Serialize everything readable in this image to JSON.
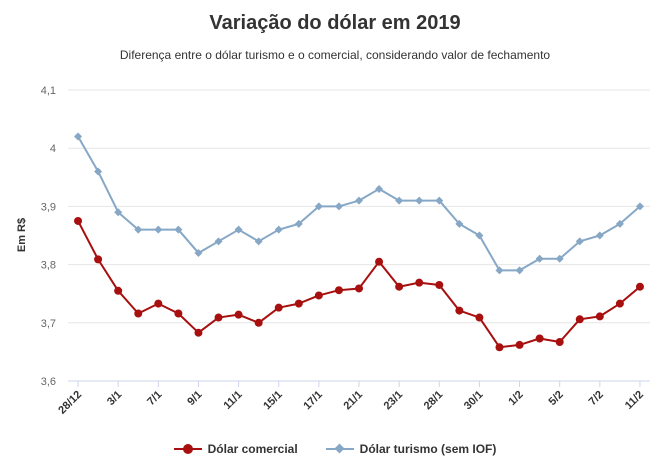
{
  "chart_data": {
    "type": "line",
    "title": "Variação do dólar em 2019",
    "subtitle": "Diferença entre o dólar turismo e o comercial, considerando valor de fechamento",
    "xlabel": "",
    "ylabel": "Em R$",
    "ylim": [
      3.6,
      4.1
    ],
    "yticks": [
      3.6,
      3.7,
      3.8,
      3.9,
      4.0,
      4.1
    ],
    "ytick_labels": [
      "3,6",
      "3,7",
      "3,8",
      "3,9",
      "4",
      "4,1"
    ],
    "grid": true,
    "legend": "bottom",
    "x_tick_labels": [
      "28/12",
      "3/1",
      "7/1",
      "9/1",
      "11/1",
      "15/1",
      "17/1",
      "21/1",
      "23/1",
      "28/1",
      "30/1",
      "1/2",
      "5/2",
      "7/2",
      "11/2"
    ],
    "x_count": 29,
    "series": [
      {
        "name": "Dólar comercial",
        "color": "#a80f0f",
        "marker": "circle",
        "values": [
          3.875,
          3.809,
          3.755,
          3.716,
          3.733,
          3.716,
          3.683,
          3.709,
          3.714,
          3.7,
          3.726,
          3.733,
          3.747,
          3.756,
          3.759,
          3.805,
          3.762,
          3.769,
          3.765,
          3.721,
          3.709,
          3.658,
          3.662,
          3.673,
          3.667,
          3.706,
          3.711,
          3.733,
          3.762
        ]
      },
      {
        "name": "Dólar turismo (sem IOF)",
        "color": "#86a7c5",
        "marker": "diamond",
        "values": [
          4.02,
          3.96,
          3.89,
          3.86,
          3.86,
          3.86,
          3.82,
          3.84,
          3.86,
          3.84,
          3.86,
          3.87,
          3.9,
          3.9,
          3.91,
          3.93,
          3.91,
          3.91,
          3.91,
          3.87,
          3.85,
          3.79,
          3.79,
          3.81,
          3.81,
          3.84,
          3.85,
          3.87,
          3.9
        ]
      }
    ]
  }
}
